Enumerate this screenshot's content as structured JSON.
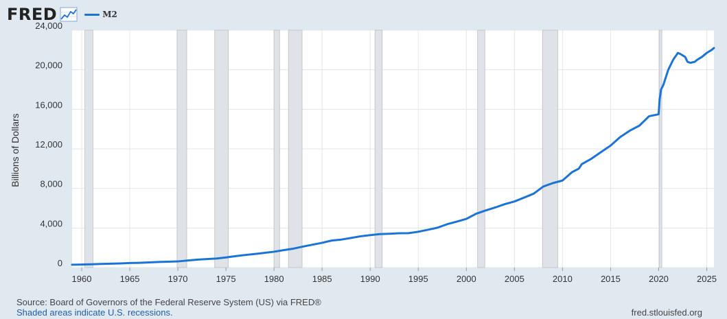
{
  "header": {
    "logo": "FRED",
    "legend_label": "M2",
    "series_color": "#1a73d6"
  },
  "footer": {
    "source": "Source: Board of Governors of the Federal Reserve System (US) via FRED®",
    "shaded_note": "Shaded areas indicate U.S. recessions.",
    "site": "fred.stlouisfed.org"
  },
  "chart_data": {
    "type": "line",
    "title": "",
    "xlabel": "",
    "ylabel": "Billions of Dollars",
    "xlim": [
      1959,
      2025.75
    ],
    "ylim": [
      0,
      24000
    ],
    "grid": true,
    "x_ticks": [
      1960,
      1965,
      1970,
      1975,
      1980,
      1985,
      1990,
      1995,
      2000,
      2005,
      2010,
      2015,
      2020,
      2025
    ],
    "y_ticks": [
      0,
      4000,
      8000,
      12000,
      16000,
      20000,
      24000
    ],
    "y_tick_labels": [
      "0",
      "4,000",
      "8,000",
      "12,000",
      "16,000",
      "20,000",
      "24,000"
    ],
    "recessions": [
      [
        1960.33,
        1961.17
      ],
      [
        1969.92,
        1970.92
      ],
      [
        1973.83,
        1975.25
      ],
      [
        1980.0,
        1980.58
      ],
      [
        1981.5,
        1982.92
      ],
      [
        1990.5,
        1991.25
      ],
      [
        2001.17,
        2001.92
      ],
      [
        2007.92,
        2009.5
      ],
      [
        2020.08,
        2020.33
      ]
    ],
    "series": [
      {
        "name": "M2",
        "color": "#1a73d6",
        "x": [
          1959,
          1960,
          1961,
          1962,
          1963,
          1964,
          1965,
          1966,
          1967,
          1968,
          1969,
          1970,
          1971,
          1972,
          1973,
          1974,
          1975,
          1976,
          1977,
          1978,
          1979,
          1980,
          1981,
          1982,
          1983,
          1984,
          1985,
          1986,
          1987,
          1988,
          1989,
          1990,
          1991,
          1992,
          1993,
          1994,
          1995,
          1996,
          1997,
          1998,
          1999,
          2000,
          2001,
          2002,
          2003,
          2004,
          2005,
          2006,
          2007,
          2008,
          2009,
          2010,
          2011,
          2011.7,
          2012,
          2013,
          2014,
          2015,
          2016,
          2017,
          2018,
          2019,
          2020.0,
          2020.1,
          2020.25,
          2020.5,
          2021,
          2021.5,
          2022.0,
          2022.25,
          2022.75,
          2023.0,
          2023.3,
          2023.75,
          2024.0,
          2024.5,
          2025.0,
          2025.5,
          2025.75
        ],
        "values": [
          290,
          305,
          330,
          360,
          390,
          420,
          460,
          480,
          520,
          560,
          590,
          620,
          710,
          800,
          860,
          910,
          1020,
          1150,
          1270,
          1370,
          1480,
          1600,
          1760,
          1910,
          2120,
          2310,
          2500,
          2730,
          2830,
          2990,
          3160,
          3280,
          3380,
          3420,
          3470,
          3480,
          3620,
          3820,
          4030,
          4380,
          4640,
          4920,
          5430,
          5770,
          6070,
          6410,
          6680,
          7070,
          7470,
          8190,
          8540,
          8800,
          9650,
          10000,
          10450,
          11000,
          11670,
          12330,
          13200,
          13840,
          14350,
          15300,
          15500,
          17000,
          18000,
          18500,
          20000,
          21000,
          21700,
          21600,
          21300,
          20800,
          20700,
          20800,
          21000,
          21300,
          21700,
          22000,
          22200
        ]
      }
    ]
  }
}
